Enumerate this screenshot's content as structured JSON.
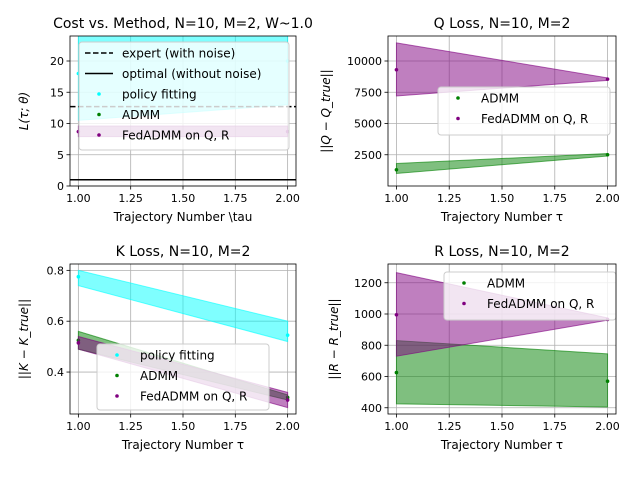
{
  "chart_data": [
    {
      "type": "area",
      "title": "Cost vs. Method, N=10, M=2, W~1.0",
      "xlabel": "Trajectory Number \\tau",
      "ylabel": "L(τ; θ)",
      "xlim": [
        0.96,
        2.04
      ],
      "ylim": [
        0,
        24
      ],
      "xticks": [
        "1.00",
        "1.25",
        "1.50",
        "1.75",
        "2.00"
      ],
      "yticks": [
        "0",
        "5",
        "10",
        "15",
        "20"
      ],
      "grid": true,
      "legend_position": "top-center",
      "hlines": [
        {
          "name": "expert (with noise)",
          "y": 12.7,
          "style": "dashed",
          "color": "#000000"
        },
        {
          "name": "optimal (without noise)",
          "y": 1.0,
          "style": "solid",
          "color": "#000000"
        }
      ],
      "series": [
        {
          "name": "policy fitting",
          "color": "#00ffff",
          "x": [
            1.0,
            2.0
          ],
          "lower": [
            10.5,
            13.0
          ],
          "upper": [
            25.0,
            25.0
          ],
          "points": [
            18.0,
            20.0
          ]
        },
        {
          "name": "ADMM",
          "color": "#008000",
          "x": [
            1.0,
            2.0
          ],
          "lower": [],
          "upper": [],
          "points": []
        },
        {
          "name": "FedADMM on Q, R",
          "color": "#800080",
          "x": [
            1.0,
            2.0
          ],
          "lower": [
            7.9,
            7.9
          ],
          "upper": [
            9.6,
            9.6
          ],
          "points": [
            8.7,
            8.7
          ]
        }
      ]
    },
    {
      "type": "area",
      "title": "Q Loss, N=10, M=2",
      "xlabel": "Trajectory Number τ",
      "ylabel": "||Q − Q_true||",
      "xlim": [
        0.96,
        2.04
      ],
      "ylim": [
        0,
        12000
      ],
      "xticks": [
        "1.00",
        "1.25",
        "1.50",
        "1.75",
        "2.00"
      ],
      "yticks": [
        "2500",
        "5000",
        "7500",
        "10000"
      ],
      "grid": true,
      "legend_position": "center-right",
      "series": [
        {
          "name": "ADMM",
          "color": "#008000",
          "x": [
            1.0,
            2.0
          ],
          "lower": [
            1000,
            2400
          ],
          "upper": [
            1800,
            2600
          ],
          "points": [
            1300,
            2500
          ]
        },
        {
          "name": "FedADMM on Q, R",
          "color": "#800080",
          "x": [
            1.0,
            2.0
          ],
          "lower": [
            7200,
            8450
          ],
          "upper": [
            11450,
            8650
          ],
          "points": [
            9300,
            8550
          ]
        }
      ]
    },
    {
      "type": "area",
      "title": "K Loss, N=10, M=2",
      "xlabel": "Trajectory Number τ",
      "ylabel": "||K − K_true||",
      "xlim": [
        0.96,
        2.04
      ],
      "ylim": [
        0.235,
        0.825
      ],
      "xticks": [
        "1.00",
        "1.25",
        "1.50",
        "1.75",
        "2.00"
      ],
      "yticks": [
        "0.4",
        "0.6",
        "0.8"
      ],
      "grid": true,
      "legend_position": "bottom-center",
      "series": [
        {
          "name": "policy fitting",
          "color": "#00ffff",
          "x": [
            1.0,
            2.0
          ],
          "lower": [
            0.74,
            0.52
          ],
          "upper": [
            0.8,
            0.6
          ],
          "points": [
            0.775,
            0.545
          ]
        },
        {
          "name": "ADMM",
          "color": "#008000",
          "x": [
            1.0,
            2.0
          ],
          "lower": [
            0.49,
            0.29
          ],
          "upper": [
            0.56,
            0.31
          ],
          "points": [
            0.525,
            0.3
          ]
        },
        {
          "name": "FedADMM on Q, R",
          "color": "#800080",
          "x": [
            1.0,
            2.0
          ],
          "lower": [
            0.49,
            0.26
          ],
          "upper": [
            0.54,
            0.32
          ],
          "points": [
            0.515,
            0.29
          ]
        }
      ]
    },
    {
      "type": "area",
      "title": "R Loss, N=10, M=2",
      "xlabel": "Trajectory Number τ",
      "ylabel": "||R − R_true||",
      "xlim": [
        0.96,
        2.04
      ],
      "ylim": [
        360,
        1320
      ],
      "xticks": [
        "1.00",
        "1.25",
        "1.50",
        "1.75",
        "2.00"
      ],
      "yticks": [
        "400",
        "600",
        "800",
        "1000",
        "1200"
      ],
      "grid": true,
      "legend_position": "top-center",
      "series": [
        {
          "name": "ADMM",
          "color": "#008000",
          "x": [
            1.0,
            2.0
          ],
          "lower": [
            425,
            405
          ],
          "upper": [
            830,
            745
          ],
          "points": [
            625,
            570
          ]
        },
        {
          "name": "FedADMM on Q, R",
          "color": "#800080",
          "x": [
            1.0,
            2.0
          ],
          "lower": [
            730,
            960
          ],
          "upper": [
            1265,
            975
          ],
          "points": [
            995,
            965
          ]
        }
      ]
    }
  ]
}
